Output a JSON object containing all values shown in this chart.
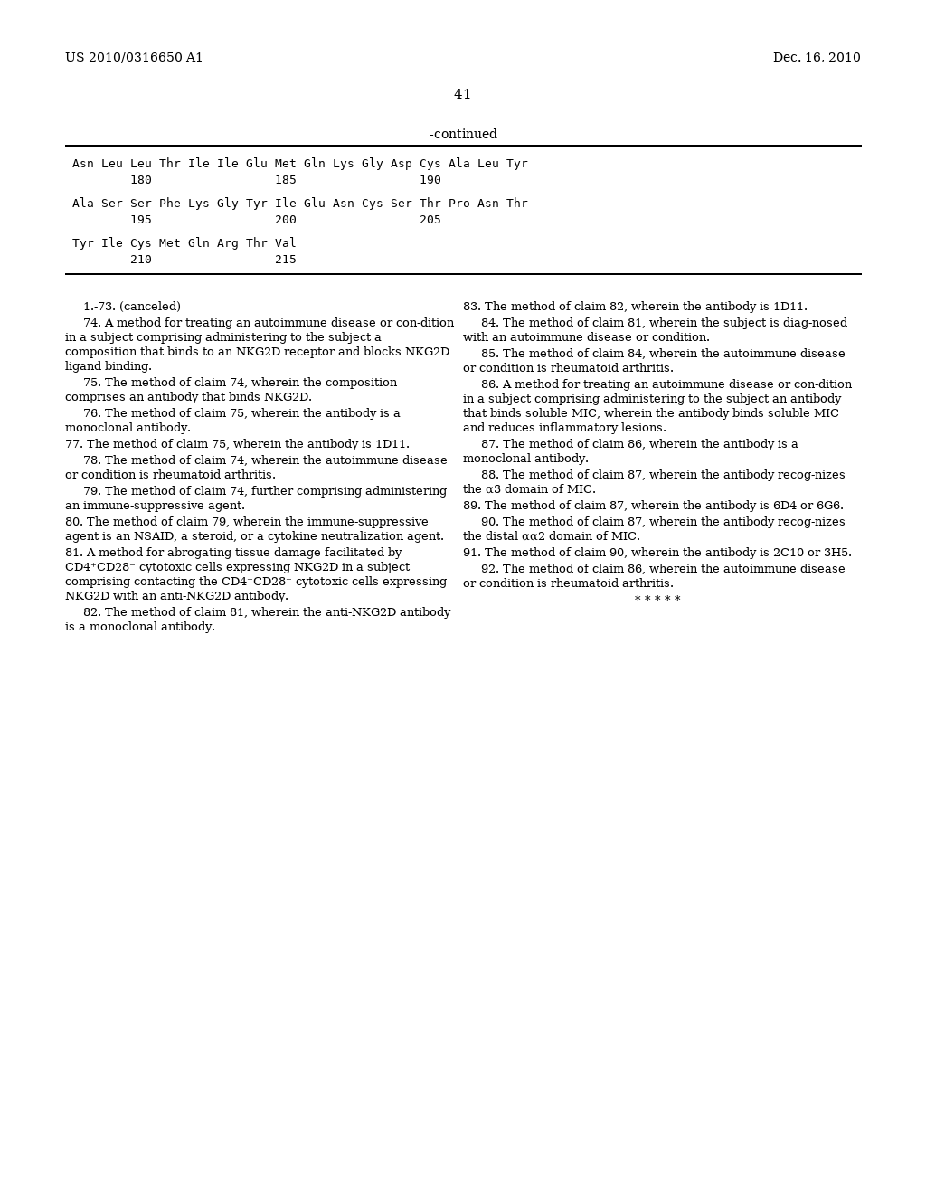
{
  "background_color": "#ffffff",
  "header_left": "US 2010/0316650 A1",
  "header_right": "Dec. 16, 2010",
  "page_number": "41",
  "continued_label": "-continued",
  "seq_block": [
    "Asn Leu Leu Thr Ile Ile Glu Met Gln Lys Gly Asp Cys Ala Leu Tyr",
    "        180                 185                 190",
    "",
    "Ala Ser Ser Phe Lys Gly Tyr Ile Glu Asn Cys Ser Thr Pro Asn Thr",
    "        195                 200                 205",
    "",
    "Tyr Ile Cys Met Gln Arg Thr Val",
    "        210                 215"
  ],
  "left_claims": [
    {
      "indent": true,
      "text": "1.-73. (canceled)"
    },
    {
      "indent": true,
      "text": "74. A method for treating an autoimmune disease or con-dition in a subject comprising administering to the subject a composition that binds to an NKG2D receptor and blocks NKG2D ligand binding."
    },
    {
      "indent": true,
      "text": "75. The method of claim 74, wherein the composition comprises an antibody that binds NKG2D."
    },
    {
      "indent": true,
      "text": "76. The method of claim 75, wherein the antibody is a monoclonal antibody."
    },
    {
      "indent": false,
      "text": "77. The method of claim 75, wherein the antibody is 1D11."
    },
    {
      "indent": true,
      "text": "78. The method of claim 74, wherein the autoimmune disease or condition is rheumatoid arthritis."
    },
    {
      "indent": true,
      "text": "79. The method of claim 74, further comprising administering an immune-suppressive agent."
    },
    {
      "indent": false,
      "text": "80. The method of claim 79, wherein the immune-suppressive agent is an NSAID, a steroid, or a cytokine neutralization agent."
    },
    {
      "indent": false,
      "text": "81. A method for abrogating tissue damage facilitated by CD4⁺CD28⁻ cytotoxic cells expressing NKG2D in a subject comprising contacting the CD4⁺CD28⁻ cytotoxic cells expressing NKG2D with an anti-NKG2D antibody."
    },
    {
      "indent": true,
      "text": "82. The method of claim 81, wherein the anti-NKG2D antibody is a monoclonal antibody."
    }
  ],
  "right_claims": [
    {
      "indent": false,
      "text": "83. The method of claim 82, wherein the antibody is 1D11."
    },
    {
      "indent": true,
      "text": "84. The method of claim 81, wherein the subject is diag-nosed with an autoimmune disease or condition."
    },
    {
      "indent": true,
      "text": "85. The method of claim 84, wherein the autoimmune disease or condition is rheumatoid arthritis."
    },
    {
      "indent": true,
      "text": "86. A method for treating an autoimmune disease or con-dition in a subject comprising administering to the subject an antibody that binds soluble MIC, wherein the antibody binds soluble MIC and reduces inflammatory lesions."
    },
    {
      "indent": true,
      "text": "87. The method of claim 86, wherein the antibody is a monoclonal antibody."
    },
    {
      "indent": true,
      "text": "88. The method of claim 87, wherein the antibody recog-nizes the α3 domain of MIC."
    },
    {
      "indent": false,
      "text": "89. The method of claim 87, wherein the antibody is 6D4 or 6G6."
    },
    {
      "indent": true,
      "text": "90. The method of claim 87, wherein the antibody recog-nizes the distal αα2 domain of MIC."
    },
    {
      "indent": false,
      "text": "91. The method of claim 90, wherein the antibody is 2C10 or 3H5."
    },
    {
      "indent": true,
      "text": "92. The method of claim 86, wherein the autoimmune disease or condition is rheumatoid arthritis."
    },
    {
      "indent": false,
      "text": "* * * * *",
      "center": true
    }
  ]
}
